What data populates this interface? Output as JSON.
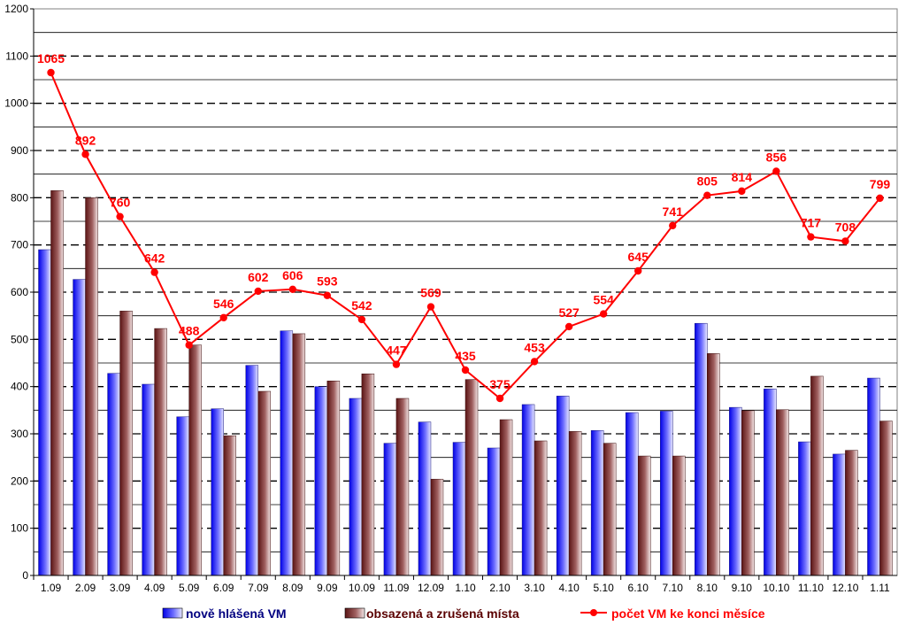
{
  "chart_data": {
    "type": "bar",
    "categories": [
      "1.09",
      "2.09",
      "3.09",
      "4.09",
      "5.09",
      "6.09",
      "7.09",
      "8.09",
      "9.09",
      "10.09",
      "11.09",
      "12.09",
      "1.10",
      "2.10",
      "3.10",
      "4.10",
      "5.10",
      "6.10",
      "7.10",
      "8.10",
      "9.10",
      "10.10",
      "11.10",
      "12.10",
      "1.11"
    ],
    "ylim": [
      0,
      1200
    ],
    "yticks": [
      0,
      100,
      200,
      300,
      400,
      500,
      600,
      700,
      800,
      900,
      1000,
      1100,
      1200
    ],
    "grid": true,
    "legend_position": "bottom",
    "series": [
      {
        "name": "nově hlášená VM",
        "kind": "bar",
        "color": "#2b2bff",
        "values": [
          690,
          627,
          428,
          405,
          336,
          353,
          445,
          518,
          400,
          375,
          280,
          325,
          282,
          270,
          362,
          380,
          307,
          345,
          348,
          534,
          356,
          395,
          283,
          257,
          418
        ]
      },
      {
        "name": "obsazená a zrušená místa",
        "kind": "bar",
        "color": "#7a2a2a",
        "values": [
          815,
          800,
          560,
          523,
          488,
          296,
          390,
          512,
          412,
          427,
          375,
          204,
          415,
          330,
          285,
          305,
          280,
          253,
          253,
          470,
          349,
          351,
          422,
          265,
          327
        ]
      },
      {
        "name": "počet VM ke konci měsíce",
        "kind": "line",
        "color": "#ff0000",
        "values": [
          1065,
          892,
          760,
          642,
          488,
          546,
          602,
          606,
          593,
          542,
          447,
          569,
          435,
          375,
          453,
          527,
          554,
          645,
          741,
          805,
          814,
          856,
          717,
          708,
          799
        ]
      }
    ]
  }
}
